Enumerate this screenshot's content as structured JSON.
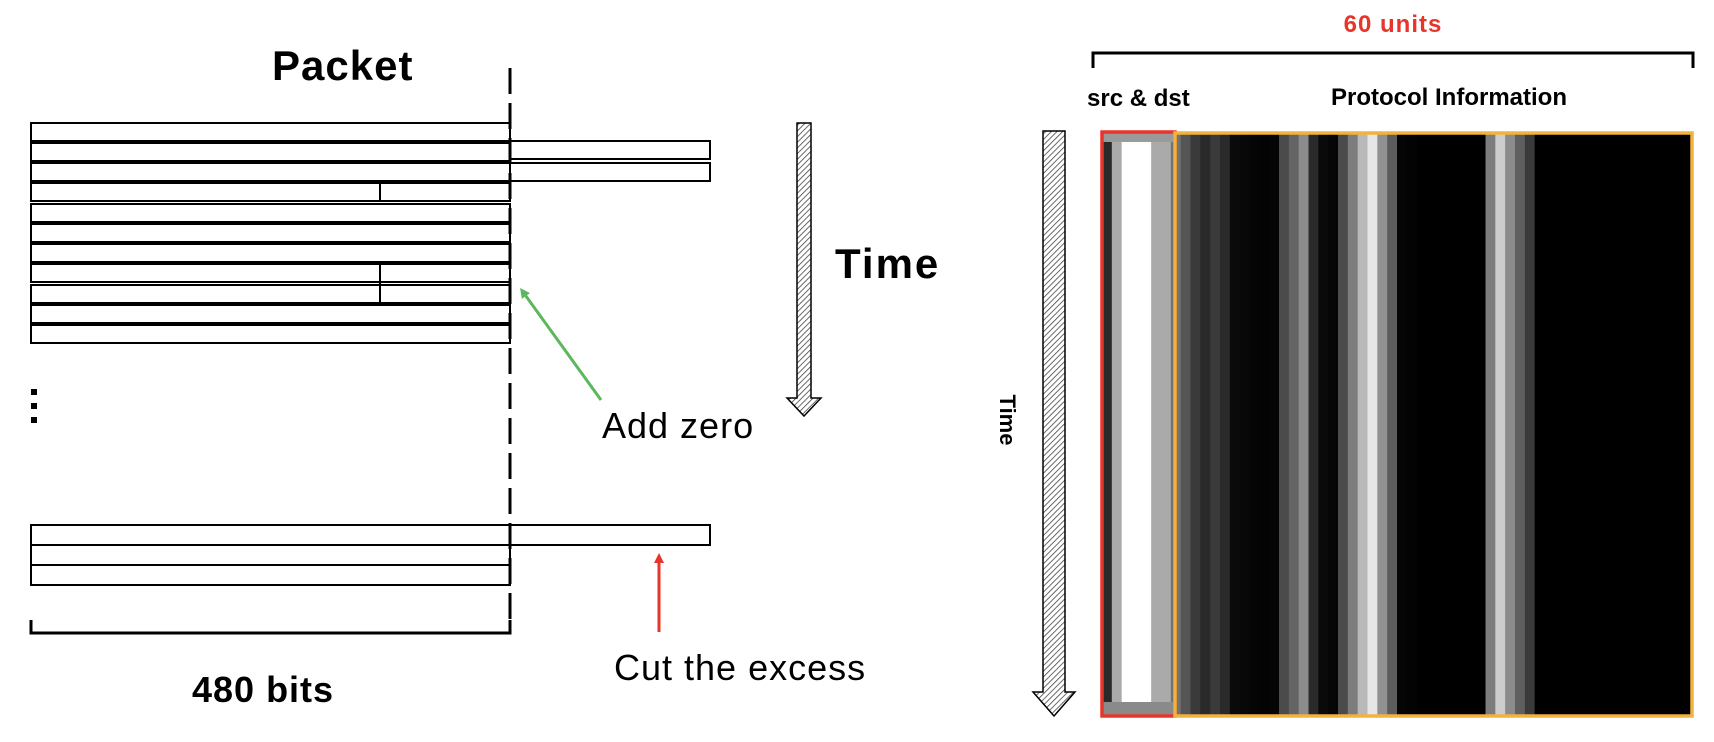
{
  "left": {
    "title": "Packet",
    "time_label": "Time",
    "bits_label": "480 bits",
    "add_zero_label": "Add zero",
    "cut_excess_label": "Cut the excess",
    "ellipsis": "⋮",
    "add_zero_arrow_color": "#5cb85c",
    "cut_arrow_color": "#e8352b"
  },
  "right": {
    "units_label": "60 units",
    "units_color": "#e8352b",
    "src_dst_label": "src & dst",
    "protocol_label": "Protocol Information",
    "time_label": "Time",
    "src_box_color": "#e8352b",
    "protocol_box_color": "#f2b33d",
    "column_count": 60,
    "column_gray_levels": [
      42,
      170,
      255,
      255,
      255,
      170,
      170,
      115,
      85,
      58,
      42,
      58,
      42,
      10,
      8,
      5,
      3,
      5,
      75,
      100,
      140,
      42,
      10,
      5,
      75,
      125,
      185,
      230,
      145,
      92,
      5,
      3,
      0,
      0,
      0,
      0,
      0,
      0,
      0,
      125,
      205,
      140,
      95,
      58,
      0,
      0,
      0,
      0,
      0,
      0,
      0,
      0,
      0,
      0,
      0,
      0,
      0,
      0,
      0,
      0
    ]
  }
}
